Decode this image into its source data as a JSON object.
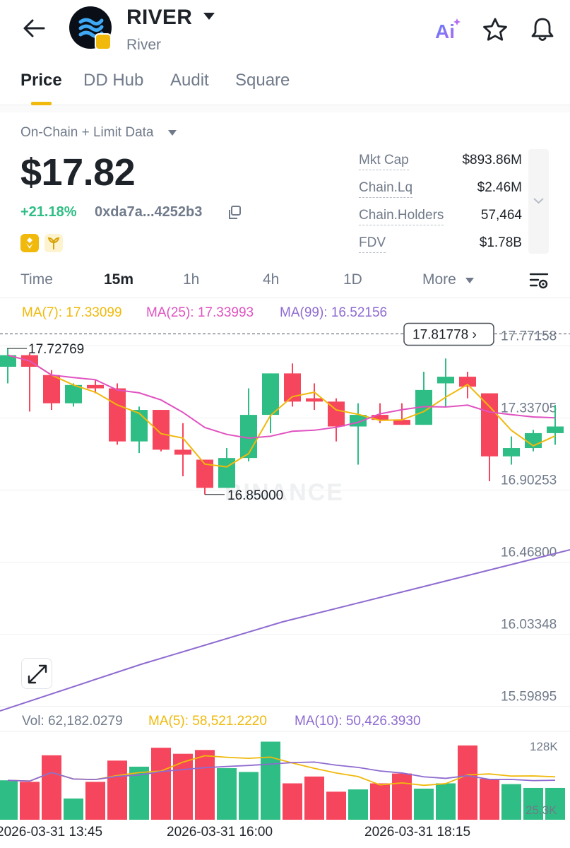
{
  "header": {
    "token_symbol": "RIVER",
    "token_name": "River",
    "icons": [
      "back-arrow-icon",
      "ai-icon",
      "star-icon",
      "bell-icon"
    ]
  },
  "tabs": [
    {
      "label": "Price",
      "active": true
    },
    {
      "label": "DD Hub",
      "active": false
    },
    {
      "label": "Audit",
      "active": false
    },
    {
      "label": "Square",
      "active": false
    }
  ],
  "overview": {
    "data_mode": "On-Chain + Limit Data",
    "price": "$17.82",
    "change": "+21.18%",
    "address": "0xda7a...4252b3",
    "stats": [
      {
        "label": "Mkt Cap",
        "value": "$893.86M"
      },
      {
        "label": "Chain.Lq",
        "value": "$2.46M"
      },
      {
        "label": "Chain.Holders",
        "value": "57,464"
      },
      {
        "label": "FDV",
        "value": "$1.78B"
      }
    ]
  },
  "intervals": [
    {
      "label": "Time",
      "active": false
    },
    {
      "label": "15m",
      "active": true
    },
    {
      "label": "1h",
      "active": false
    },
    {
      "label": "4h",
      "active": false
    },
    {
      "label": "1D",
      "active": false
    },
    {
      "label": "More",
      "active": false
    }
  ],
  "indicators": {
    "ma7": "MA(7): 17.33099",
    "ma25": "MA(25): 17.33993",
    "ma99": "MA(99): 16.52156",
    "vol": "Vol: 62,182.0279",
    "vol_ma5": "MA(5): 58,521.2220",
    "vol_ma10": "MA(10): 50,426.3930"
  },
  "colors": {
    "up": "#2ebd85",
    "down": "#f6465d",
    "ma7": "#f0b90b",
    "ma25": "#e052c0",
    "ma99": "#8e6bd0",
    "accent": "#f0b90b"
  },
  "chart_data": {
    "type": "candlestick",
    "y_axis_labels": [
      "17.77158",
      "17.33705",
      "16.90253",
      "16.46800",
      "16.03348",
      "15.59895"
    ],
    "ylim": [
      15.55,
      17.85
    ],
    "x_tick_labels": [
      "2026-03-31 13:45",
      "2026-03-31 16:00",
      "2026-03-31 18:15"
    ],
    "current_price_label": "17.81778",
    "current_price": 17.818,
    "high_label": "17.72769",
    "low_label": "16.85000",
    "watermark": "BINANCE",
    "candles": [
      {
        "o": 17.62,
        "h": 17.73,
        "l": 17.52,
        "c": 17.69
      },
      {
        "o": 17.69,
        "h": 17.7,
        "l": 17.35,
        "c": 17.62
      },
      {
        "o": 17.57,
        "h": 17.6,
        "l": 17.36,
        "c": 17.4
      },
      {
        "o": 17.4,
        "h": 17.52,
        "l": 17.38,
        "c": 17.51
      },
      {
        "o": 17.51,
        "h": 17.54,
        "l": 17.46,
        "c": 17.49
      },
      {
        "o": 17.49,
        "h": 17.52,
        "l": 17.15,
        "c": 17.17
      },
      {
        "o": 17.17,
        "h": 17.38,
        "l": 17.1,
        "c": 17.36
      },
      {
        "o": 17.36,
        "h": 17.36,
        "l": 17.11,
        "c": 17.12
      },
      {
        "o": 17.12,
        "h": 17.28,
        "l": 16.96,
        "c": 17.09
      },
      {
        "o": 17.06,
        "h": 17.06,
        "l": 16.85,
        "c": 16.89
      },
      {
        "o": 16.89,
        "h": 17.13,
        "l": 16.89,
        "c": 17.07
      },
      {
        "o": 17.07,
        "h": 17.49,
        "l": 17.05,
        "c": 17.33
      },
      {
        "o": 17.33,
        "h": 17.58,
        "l": 17.22,
        "c": 17.58
      },
      {
        "o": 17.58,
        "h": 17.64,
        "l": 17.38,
        "c": 17.41
      },
      {
        "o": 17.43,
        "h": 17.52,
        "l": 17.36,
        "c": 17.41
      },
      {
        "o": 17.41,
        "h": 17.43,
        "l": 17.17,
        "c": 17.26
      },
      {
        "o": 17.26,
        "h": 17.4,
        "l": 17.03,
        "c": 17.33
      },
      {
        "o": 17.33,
        "h": 17.4,
        "l": 17.28,
        "c": 17.3
      },
      {
        "o": 17.3,
        "h": 17.4,
        "l": 17.27,
        "c": 17.27
      },
      {
        "o": 17.27,
        "h": 17.59,
        "l": 17.27,
        "c": 17.48
      },
      {
        "o": 17.52,
        "h": 17.67,
        "l": 17.38,
        "c": 17.56
      },
      {
        "o": 17.56,
        "h": 17.59,
        "l": 17.43,
        "c": 17.5
      },
      {
        "o": 17.46,
        "h": 17.46,
        "l": 16.93,
        "c": 17.08
      },
      {
        "o": 17.08,
        "h": 17.2,
        "l": 17.03,
        "c": 17.13
      },
      {
        "o": 17.13,
        "h": 17.24,
        "l": 17.11,
        "c": 17.22
      },
      {
        "o": 17.22,
        "h": 17.39,
        "l": 17.15,
        "c": 17.26
      }
    ],
    "volumes": [
      52000,
      50000,
      85000,
      28000,
      50000,
      78000,
      70000,
      95000,
      87000,
      92000,
      68000,
      63000,
      103000,
      48000,
      57000,
      37000,
      40000,
      48000,
      61000,
      41000,
      48000,
      98000,
      54000,
      47000,
      42000,
      42000
    ],
    "volume_axis_labels": [
      "128K",
      "25.3K"
    ]
  }
}
